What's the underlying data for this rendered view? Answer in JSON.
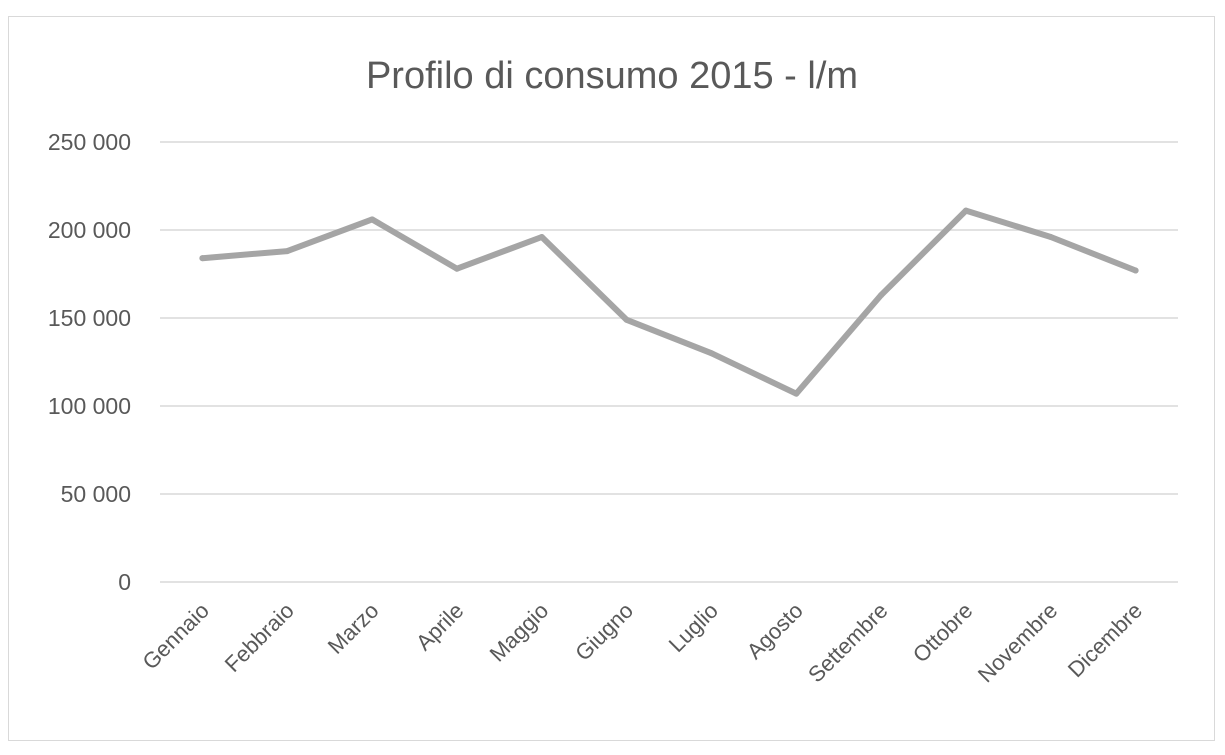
{
  "chart_data": {
    "type": "line",
    "title": "Profilo di consumo 2015 - l/m",
    "categories": [
      "Gennaio",
      "Febbraio",
      "Marzo",
      "Aprile",
      "Maggio",
      "Giugno",
      "Luglio",
      "Agosto",
      "Settembre",
      "Ottobre",
      "Novembre",
      "Dicembre"
    ],
    "series": [
      {
        "values": [
          184000,
          188000,
          206000,
          178000,
          196000,
          149000,
          130000,
          107000,
          163000,
          211000,
          196000,
          177000
        ],
        "color": "#a5a5a5"
      }
    ],
    "ylim": [
      0,
      250000
    ],
    "yticks": [
      0,
      50000,
      100000,
      150000,
      200000,
      250000
    ],
    "ytick_labels": [
      "0",
      "50 000",
      "100 000",
      "150 000",
      "200 000",
      "250 000"
    ],
    "grid": true,
    "legend": "none"
  }
}
